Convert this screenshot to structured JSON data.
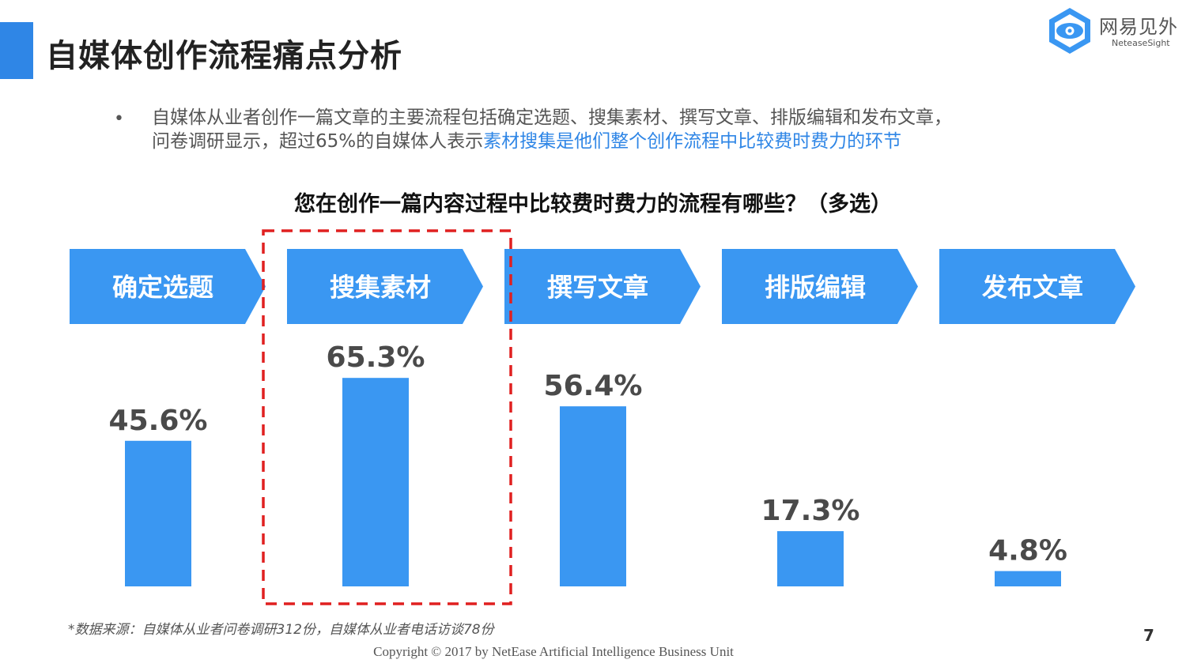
{
  "header": {
    "title": "自媒体创作流程痛点分析"
  },
  "logo": {
    "name_cn": "网易见外",
    "name_en": "NeteaseSight"
  },
  "bullet": {
    "dot": "•",
    "text_line1": "自媒体从业者创作一篇文章的主要流程包括确定选题、搜集素材、撰写文章、排版编辑和发布文章，",
    "text_line2_plain": "问卷调研显示，超过65%的自媒体人表示",
    "text_line2_highlight": "素材搜集是他们整个创作流程中比较费时费力的环节"
  },
  "chart_data": {
    "type": "bar",
    "title": "您在创作一篇内容过程中比较费时费力的流程有哪些？（多选）",
    "categories": [
      "确定选题",
      "搜集素材",
      "撰写文章",
      "排版编辑",
      "发布文章"
    ],
    "values": [
      45.6,
      65.3,
      56.4,
      17.3,
      4.8
    ],
    "value_labels": [
      "45.6%",
      "65.3%",
      "56.4%",
      "17.3%",
      "4.8%"
    ],
    "unit": "%",
    "ylim": [
      0,
      100
    ],
    "highlighted_category": "搜集素材",
    "colors": {
      "bar": "#3a97f2",
      "arrow": "#3a97f2",
      "highlight_box": "#e02020",
      "value_label": "#4a4a4a"
    }
  },
  "footer": {
    "source": "*数据来源：自媒体从业者问卷调研312份，自媒体从业者电话访谈78份",
    "page_number": "7",
    "copyright": "Copyright © 2017 by NetEase Artificial Intelligence Business Unit"
  }
}
